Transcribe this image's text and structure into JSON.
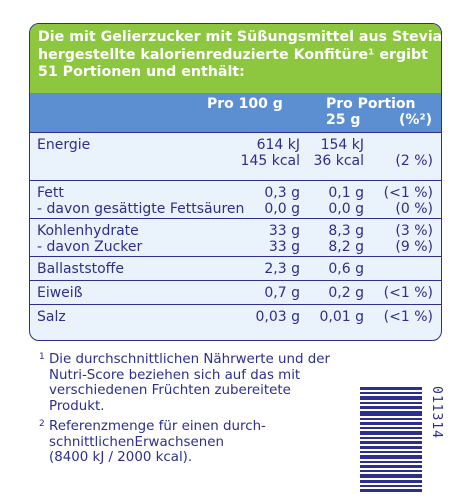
{
  "header": {
    "line1": "Die mit Gelierzucker mit Süßungsmittel aus Stevia",
    "line2": "hergestellte kalorienreduzierte Konfitüre¹ ergibt",
    "line3": "51 Portionen und enthält:"
  },
  "columns": {
    "per100": "Pro 100 g",
    "perPortion": "Pro Portion",
    "portionSize": "25 g",
    "ri": "(%²)"
  },
  "rows": [
    {
      "lines": [
        {
          "label": "Energie",
          "v100": "614 kJ",
          "vp": "154 kJ",
          "pct": ""
        },
        {
          "label": "",
          "v100": "145 kcal",
          "vp": "36 kcal",
          "pct": "(2 %)"
        }
      ]
    },
    {
      "lines": [
        {
          "label": "Fett",
          "v100": "0,3 g",
          "vp": "0,1 g",
          "pct": "(<1 %)"
        },
        {
          "label": "- davon gesättigte Fettsäuren",
          "v100": "0,0 g",
          "vp": "0,0 g",
          "pct": "(0 %)"
        }
      ]
    },
    {
      "lines": [
        {
          "label": "Kohlenhydrate",
          "v100": "33 g",
          "vp": "8,3 g",
          "pct": "(3 %)"
        },
        {
          "label": "- davon Zucker",
          "v100": "33 g",
          "vp": "8,2 g",
          "pct": "(9 %)"
        }
      ]
    },
    {
      "lines": [
        {
          "label": "Ballaststoffe",
          "v100": "2,3 g",
          "vp": "0,6 g",
          "pct": ""
        }
      ]
    },
    {
      "lines": [
        {
          "label": "Eiweiß",
          "v100": "0,7 g",
          "vp": "0,2 g",
          "pct": "(<1 %)"
        }
      ]
    },
    {
      "lines": [
        {
          "label": "Salz",
          "v100": "0,03 g",
          "vp": "0,01 g",
          "pct": "(<1 %)"
        }
      ]
    }
  ],
  "footnotes": {
    "n1_mark": "1",
    "n1_lines": [
      "Die durchschnittlichen Nährwerte und der",
      "Nutri-Score beziehen sich auf das mit",
      "verschiedenen Früchten zubereitete",
      "Produkt."
    ],
    "n2_mark": "2",
    "n2_lines": [
      "Referenzmenge für einen durch-",
      "schnittlichenErwachsenen",
      "(8400 kJ / 2000 kcal)."
    ]
  },
  "barcode_number": "011314",
  "colors": {
    "text": "#2d2f8c",
    "header_green": "#8dc63f",
    "header_blue": "#5b8fd1",
    "table_bg": "#eaf2fb"
  }
}
